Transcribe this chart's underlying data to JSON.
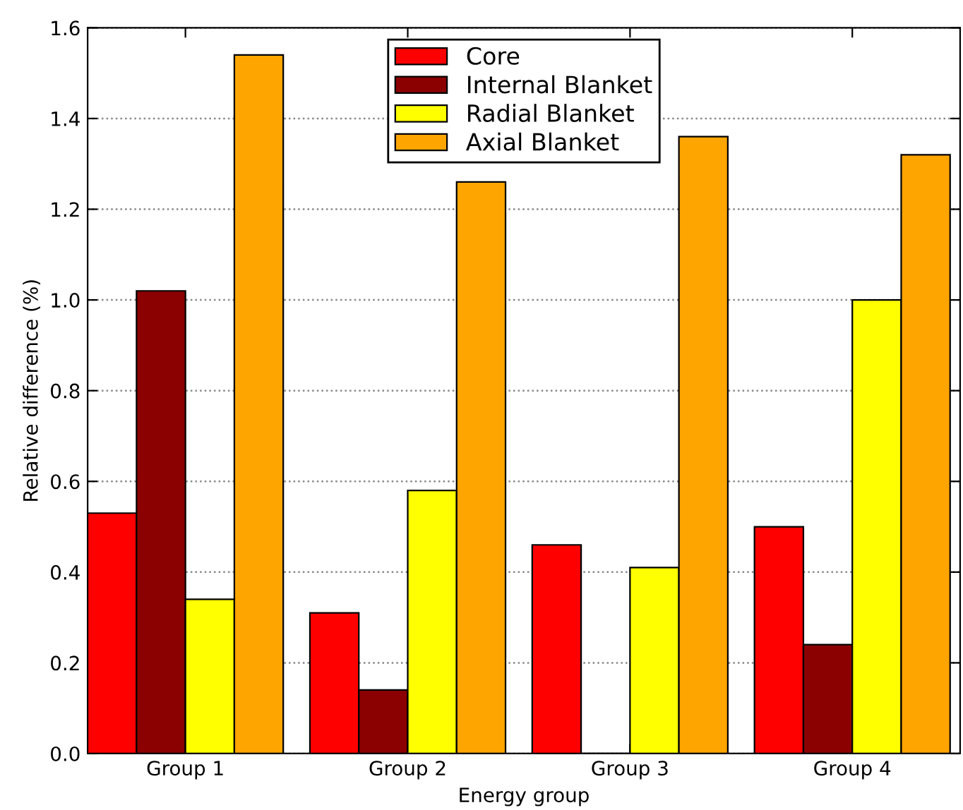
{
  "chart_data": {
    "type": "bar",
    "xlabel": "Energy group",
    "ylabel": "Relative difference (%)",
    "categories": [
      "Group 1",
      "Group 2",
      "Group 3",
      "Group 4"
    ],
    "series": [
      {
        "name": "Core",
        "color": "#ff0000",
        "values": [
          0.53,
          0.31,
          0.46,
          0.5
        ]
      },
      {
        "name": "Internal Blanket",
        "color": "#8b0000",
        "values": [
          1.02,
          0.14,
          0.0,
          0.24
        ]
      },
      {
        "name": "Radial Blanket",
        "color": "#ffff00",
        "values": [
          0.34,
          0.58,
          0.41,
          1.0
        ]
      },
      {
        "name": "Axial Blanket",
        "color": "#ffa500",
        "values": [
          1.54,
          1.26,
          1.36,
          1.32
        ]
      }
    ],
    "ylim": [
      0,
      1.6
    ],
    "yticks": [
      {
        "value": 0,
        "label": "0.0"
      },
      0.2,
      0.4,
      0.6,
      0.8,
      {
        "value": 1,
        "label": "1.0"
      },
      1.2,
      1.4,
      1.6
    ],
    "grid": "y",
    "legend": "top center"
  }
}
